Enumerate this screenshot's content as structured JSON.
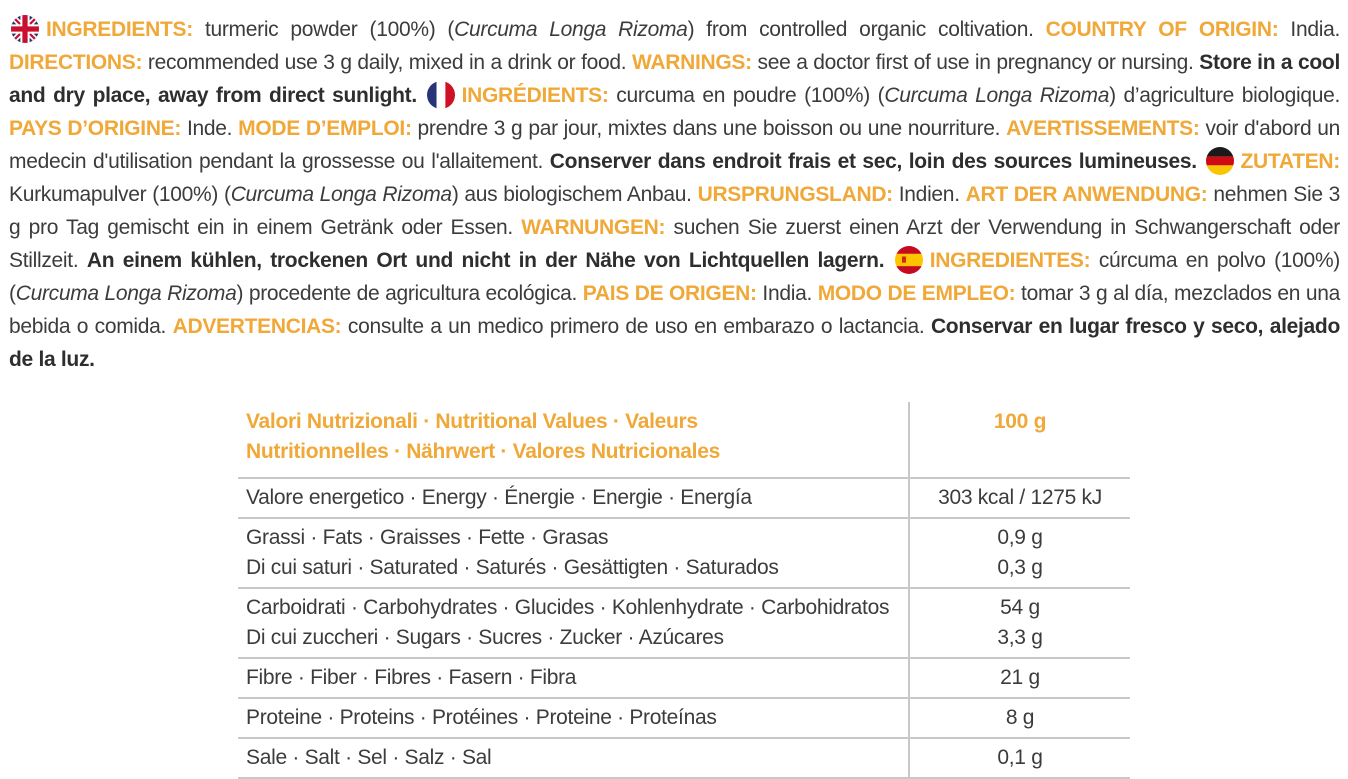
{
  "accent_color": "#F0A838",
  "label": {
    "segments": [
      {
        "kind": "flag",
        "flag": "uk"
      },
      {
        "kind": "label",
        "text": "INGREDIENTS:"
      },
      {
        "kind": "text",
        "text": " turmeric powder (100%) ("
      },
      {
        "kind": "italic",
        "text": "Curcuma Longa Rizoma"
      },
      {
        "kind": "text",
        "text": ") from controlled organic coltivation. "
      },
      {
        "kind": "label",
        "text": "COUNTRY OF ORIGIN:"
      },
      {
        "kind": "text",
        "text": " India. "
      },
      {
        "kind": "label",
        "text": "DIRECTIONS:"
      },
      {
        "kind": "text",
        "text": " recommended use 3 g daily, mixed in a drink or food. "
      },
      {
        "kind": "label",
        "text": "WARNINGS:"
      },
      {
        "kind": "text",
        "text": " see a doctor first of use in pregnancy or nursing. "
      },
      {
        "kind": "bold",
        "text": "Store in a cool and dry place, away from direct sunlight."
      },
      {
        "kind": "text",
        "text": " "
      },
      {
        "kind": "flag",
        "flag": "fr"
      },
      {
        "kind": "label",
        "text": "INGRÉDIENTS:"
      },
      {
        "kind": "text",
        "text": " curcuma en poudre (100%) ("
      },
      {
        "kind": "italic",
        "text": "Curcuma Longa Rizoma"
      },
      {
        "kind": "text",
        "text": ") d’agriculture biologique. "
      },
      {
        "kind": "label",
        "text": "PAYS D’ORIGINE:"
      },
      {
        "kind": "text",
        "text": " Inde. "
      },
      {
        "kind": "label",
        "text": "MODE D’EMPLOI:"
      },
      {
        "kind": "text",
        "text": " prendre 3 g par jour, mixtes dans une boisson ou une nourriture. "
      },
      {
        "kind": "label",
        "text": "AVERTISSEMENTS:"
      },
      {
        "kind": "text",
        "text": " voir d'abord un medecin d'utilisation pendant la grossesse ou l'allaitement. "
      },
      {
        "kind": "bold",
        "text": "Conserver dans endroit frais et sec, loin des sources lumineuses."
      },
      {
        "kind": "text",
        "text": " "
      },
      {
        "kind": "flag",
        "flag": "de"
      },
      {
        "kind": "label",
        "text": "ZUTATEN:"
      },
      {
        "kind": "text",
        "text": " Kurkumapulver (100%) ("
      },
      {
        "kind": "italic",
        "text": "Curcuma Longa Rizoma"
      },
      {
        "kind": "text",
        "text": ") aus biologischem Anbau. "
      },
      {
        "kind": "label",
        "text": "URSPRUNGSLAND:"
      },
      {
        "kind": "text",
        "text": " Indien. "
      },
      {
        "kind": "label",
        "text": "ART DER ANWENDUNG:"
      },
      {
        "kind": "text",
        "text": " nehmen Sie 3 g pro Tag gemischt ein in einem Getränk oder Essen. "
      },
      {
        "kind": "label",
        "text": "WARNUNGEN:"
      },
      {
        "kind": "text",
        "text": " suchen Sie zuerst einen Arzt der Verwendung in Schwangerschaft oder Stillzeit. "
      },
      {
        "kind": "bold",
        "text": "An einem kühlen, trockenen Ort und nicht in der Nähe von Lichtquellen lagern."
      },
      {
        "kind": "text",
        "text": " "
      },
      {
        "kind": "flag",
        "flag": "es"
      },
      {
        "kind": "label",
        "text": "INGREDIENTES:"
      },
      {
        "kind": "text",
        "text": " cúrcuma en polvo (100%) ("
      },
      {
        "kind": "italic",
        "text": "Curcuma Longa Rizoma"
      },
      {
        "kind": "text",
        "text": ") procedente de agricultura ecológica. "
      },
      {
        "kind": "label",
        "text": "PAIS DE ORIGEN:"
      },
      {
        "kind": "text",
        "text": " India. "
      },
      {
        "kind": "label",
        "text": "MODO DE EMPLEO:"
      },
      {
        "kind": "text",
        "text": " tomar 3 g al día, mezclados en una bebida o comida. "
      },
      {
        "kind": "label",
        "text": "ADVERTENCIAS:"
      },
      {
        "kind": "text",
        "text": " consulte a un medico primero de uso en embarazo o lactancia. "
      },
      {
        "kind": "bold",
        "text": "Conservar en lugar fresco y seco, alejado de la luz."
      }
    ]
  },
  "table": {
    "header": {
      "label": "Valori Nutrizionali · Nutritional Values · Valeurs Nutritionnelles · Nährwert  · Valores Nutricionales",
      "value": "100 g"
    },
    "rows": [
      {
        "lines": [
          "Valore energetico · Energy · Énergie · Energie · Energía"
        ],
        "values": [
          "303 kcal / 1275 kJ"
        ]
      },
      {
        "lines": [
          "Grassi · Fats · Graisses · Fette · Grasas",
          "Di cui saturi · Saturated · Saturés · Gesättigten · Saturados"
        ],
        "values": [
          "0,9 g",
          "0,3 g"
        ]
      },
      {
        "lines": [
          "Carboidrati · Carbohydrates · Glucides · Kohlenhydrate · Carbohidratos",
          "Di cui zuccheri · Sugars · Sucres · Zucker · Azúcares"
        ],
        "values": [
          "54 g",
          "3,3 g"
        ]
      },
      {
        "lines": [
          "Fibre · Fiber · Fibres · Fasern · Fibra"
        ],
        "values": [
          "21 g"
        ]
      },
      {
        "lines": [
          "Proteine · Proteins · Protéines · Proteine · Proteínas"
        ],
        "values": [
          "8 g"
        ]
      },
      {
        "lines": [
          "Sale · Salt · Sel · Salz · Sal"
        ],
        "values": [
          "0,1 g"
        ]
      }
    ]
  }
}
